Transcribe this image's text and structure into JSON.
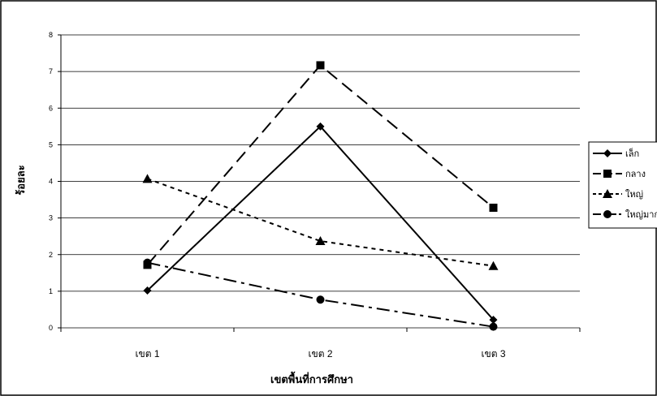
{
  "chart_data": {
    "type": "line",
    "categories": [
      "เขต 1",
      "เขต 2",
      "เขต 3"
    ],
    "xlabel": "เขตพื้นที่การศึกษา",
    "ylabel": "ร้อยละ",
    "ylim": [
      0,
      8
    ],
    "yticks": [
      "0",
      "1",
      "2",
      "3",
      "4",
      "5",
      "6",
      "7",
      "8"
    ],
    "grid": true,
    "legend_position": "right",
    "series": [
      {
        "name": "เล็ก",
        "values": [
          1.02,
          5.5,
          0.22
        ],
        "marker": "diamond",
        "dash": "solid"
      },
      {
        "name": "กลาง",
        "values": [
          1.72,
          7.17,
          3.28
        ],
        "marker": "square",
        "dash": "long-dash"
      },
      {
        "name": "ใหญ่",
        "values": [
          4.07,
          2.37,
          1.69
        ],
        "marker": "triangle",
        "dash": "short-dash"
      },
      {
        "name": "ใหญ่มาก",
        "values": [
          1.78,
          0.77,
          0.03
        ],
        "marker": "circle",
        "dash": "dash-dot"
      }
    ],
    "colors": {
      "lines": "#000000",
      "grid": "#000000",
      "background": "#ffffff"
    }
  }
}
